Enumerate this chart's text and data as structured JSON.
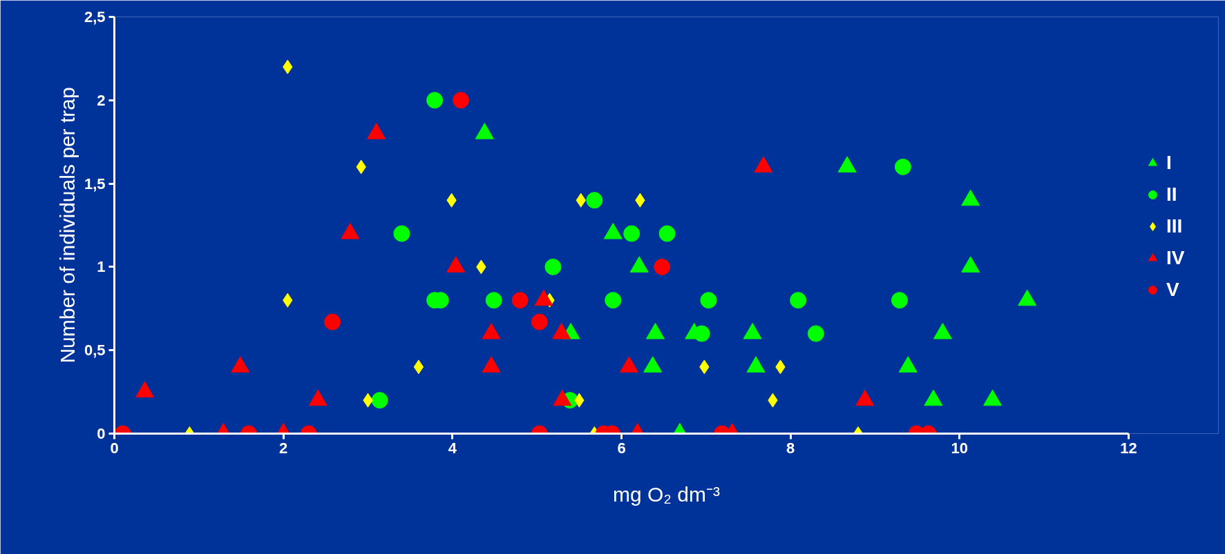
{
  "chart_data": {
    "type": "scatter",
    "xlabel": "mg O₂ dm⁻³",
    "ylabel": "Number of individuals per trap",
    "xlim": [
      0,
      12
    ],
    "xticks": [
      0,
      2,
      4,
      6,
      8,
      10,
      12
    ],
    "ylim": [
      0,
      2.5
    ],
    "yticks": [
      0,
      {
        "value": 0.5,
        "label": "0,5"
      },
      1,
      {
        "value": 1.5,
        "label": "1,5"
      },
      2,
      {
        "value": 2.5,
        "label": "2,5"
      }
    ],
    "grid": false,
    "legend": "right",
    "series": [
      {
        "name": "I",
        "color": "#00ff00",
        "marker": "triangle",
        "x": [
          4.38,
          5.9,
          6.21,
          5.4,
          6.4,
          6.37,
          6.86,
          6.69,
          7.55,
          7.59,
          8.67,
          10.13,
          10.13,
          10.8,
          9.8,
          9.39,
          9.69,
          10.39
        ],
        "values": [
          1.8,
          1.2,
          1.0,
          0.6,
          0.6,
          0.4,
          0.6,
          0,
          0.6,
          0.4,
          1.6,
          1.4,
          1.0,
          0.8,
          0.6,
          0.4,
          0.2,
          0.2
        ]
      },
      {
        "name": "II",
        "color": "#00ff00",
        "marker": "circle",
        "x": [
          3.79,
          3.4,
          3.79,
          3.86,
          3.14,
          4.49,
          5.19,
          5.39,
          5.68,
          6.12,
          6.54,
          5.9,
          6.95,
          7.03,
          8.09,
          8.3,
          9.33,
          9.29
        ],
        "values": [
          2.0,
          1.2,
          0.8,
          0.8,
          0.2,
          0.8,
          1.0,
          0.2,
          1.4,
          1.2,
          1.2,
          0.8,
          0.6,
          0.8,
          0.8,
          0.6,
          1.6,
          0.8
        ]
      },
      {
        "name": "III",
        "color": "#ffff00",
        "marker": "diamond",
        "x": [
          2.05,
          2.92,
          3.99,
          5.52,
          6.22,
          4.34,
          2.05,
          5.15,
          3.6,
          3.0,
          5.5,
          6.98,
          7.88,
          7.79,
          0.89,
          5.68,
          8.8
        ],
        "values": [
          2.2,
          1.6,
          1.4,
          1.4,
          1.4,
          1.0,
          0.8,
          0.8,
          0.4,
          0.2,
          0.2,
          0.4,
          0.4,
          0.2,
          0,
          0,
          0
        ]
      },
      {
        "name": "IV",
        "color": "#ff0000",
        "marker": "triangle",
        "x": [
          0.36,
          1.49,
          2.41,
          2.79,
          3.1,
          4.04,
          4.46,
          4.46,
          5.08,
          5.29,
          5.3,
          6.09,
          7.68,
          8.88,
          1.29,
          2.0,
          6.19,
          7.31
        ],
        "values": [
          0.25,
          0.4,
          0.2,
          1.2,
          1.8,
          1.0,
          0.6,
          0.4,
          0.8,
          0.6,
          0.2,
          0.4,
          1.6,
          0.2,
          0,
          0,
          0,
          0
        ]
      },
      {
        "name": "V",
        "color": "#ff0000",
        "marker": "circle",
        "x": [
          0.1,
          1.59,
          2.3,
          2.58,
          4.1,
          4.8,
          5.03,
          5.03,
          5.79,
          5.89,
          6.48,
          7.19,
          9.49,
          9.63
        ],
        "values": [
          0,
          0,
          0,
          0.67,
          2.0,
          0.8,
          0.67,
          0,
          0,
          0,
          1.0,
          0,
          0,
          0
        ]
      }
    ]
  }
}
